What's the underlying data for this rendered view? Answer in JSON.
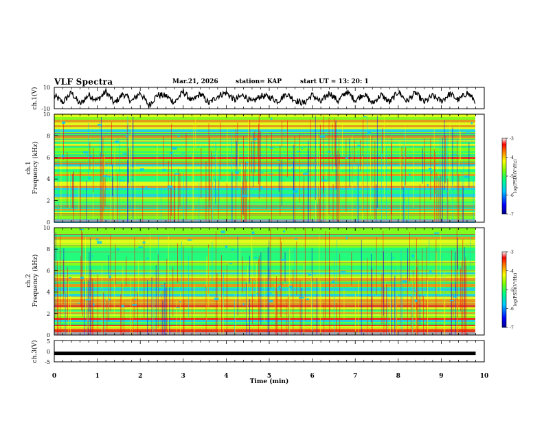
{
  "header": {
    "title": "VLF Spectra",
    "date": "Mar.21, 2026",
    "station": "station= KAP",
    "start_ut": "start  UT  =   13: 20: 1"
  },
  "colors": {
    "trace": "#000000",
    "colormap": [
      "#000090",
      "#0000ff",
      "#00c8ff",
      "#00ff80",
      "#80ff00",
      "#ffff00",
      "#ff8000",
      "#ff0000",
      "#ffffff"
    ]
  },
  "chart_data": [
    {
      "id": "ch1_waveform",
      "type": "line",
      "ylabel": "ch.1(V)",
      "ylim": [
        -10,
        10
      ],
      "yticks": [
        "10",
        "-10"
      ],
      "xlim": [
        0,
        10
      ],
      "x": [
        0.0,
        0.2,
        0.4,
        0.6,
        0.8,
        1.0,
        1.2,
        1.4,
        1.6,
        1.8,
        2.0,
        2.2,
        2.4,
        2.6,
        2.8,
        3.0,
        3.2,
        3.4,
        3.6,
        3.8,
        4.0,
        4.2,
        4.4,
        4.6,
        4.8,
        5.0,
        5.2,
        5.4,
        5.6,
        5.8,
        6.0,
        6.2,
        6.4,
        6.6,
        6.8,
        7.0,
        7.2,
        7.4,
        7.6,
        7.8,
        8.0,
        8.2,
        8.4,
        8.6,
        8.8,
        9.0,
        9.2,
        9.4,
        9.6,
        9.8
      ],
      "values": [
        2,
        -4,
        5,
        -6,
        3,
        -2,
        6,
        -5,
        4,
        -3,
        5,
        -7,
        3,
        2,
        -4,
        6,
        -3,
        4,
        -5,
        2,
        5,
        -2,
        3,
        -4,
        2,
        1,
        -3,
        4,
        -2,
        -5,
        3,
        -4,
        5,
        -3,
        6,
        -2,
        4,
        -5,
        3,
        -4,
        6,
        -3,
        5,
        -4,
        2,
        -3,
        4,
        -2,
        5,
        -3
      ]
    },
    {
      "id": "ch1_spectrogram",
      "type": "heatmap",
      "ylabel": "ch.1\nFrequency (kHz)",
      "ylim": [
        0,
        10
      ],
      "yticks": [
        "10",
        "8",
        "6",
        "4",
        "2",
        "0"
      ],
      "xlim": [
        0,
        10
      ],
      "colorbar": {
        "label": "log(PSD)(V²/Hz)",
        "range": [
          -7,
          -3
        ],
        "ticks": [
          "-3",
          "-4",
          "-5",
          "-6",
          "-7"
        ]
      }
    },
    {
      "id": "ch2_spectrogram",
      "type": "heatmap",
      "ylabel": "ch.2\nFrequency (kHz)",
      "ylim": [
        0,
        10
      ],
      "yticks": [
        "10",
        "8",
        "6",
        "4",
        "2",
        "0"
      ],
      "xlim": [
        0,
        10
      ],
      "colorbar": {
        "label": "log(PSD)(V²/Hz)",
        "range": [
          -7,
          -3
        ],
        "ticks": [
          "-3",
          "-4",
          "-5",
          "-6",
          "-7"
        ]
      }
    },
    {
      "id": "ch3_waveform",
      "type": "line",
      "ylabel": "ch.3(V)",
      "ylim": [
        -5,
        5
      ],
      "yticks": [
        "5",
        "0",
        "-5"
      ],
      "xlim": [
        0,
        10
      ],
      "x": [
        0,
        9.8
      ],
      "values": [
        -1,
        -1
      ]
    }
  ],
  "xaxis": {
    "label": "Time  (min)",
    "ticks": [
      "0",
      "1",
      "2",
      "3",
      "4",
      "5",
      "6",
      "7",
      "8",
      "9",
      "10"
    ]
  },
  "panels": {
    "ch1_label": "ch.1(V)",
    "ch1_spec_label1": "ch.1",
    "ch1_spec_label2": "Frequency  (kHz)",
    "ch2_spec_label1": "ch.2",
    "ch2_spec_label2": "Frequency  (kHz)",
    "ch3_label": "ch.3(V)",
    "cb_label": "log(PSD)(V²/Hz)"
  }
}
